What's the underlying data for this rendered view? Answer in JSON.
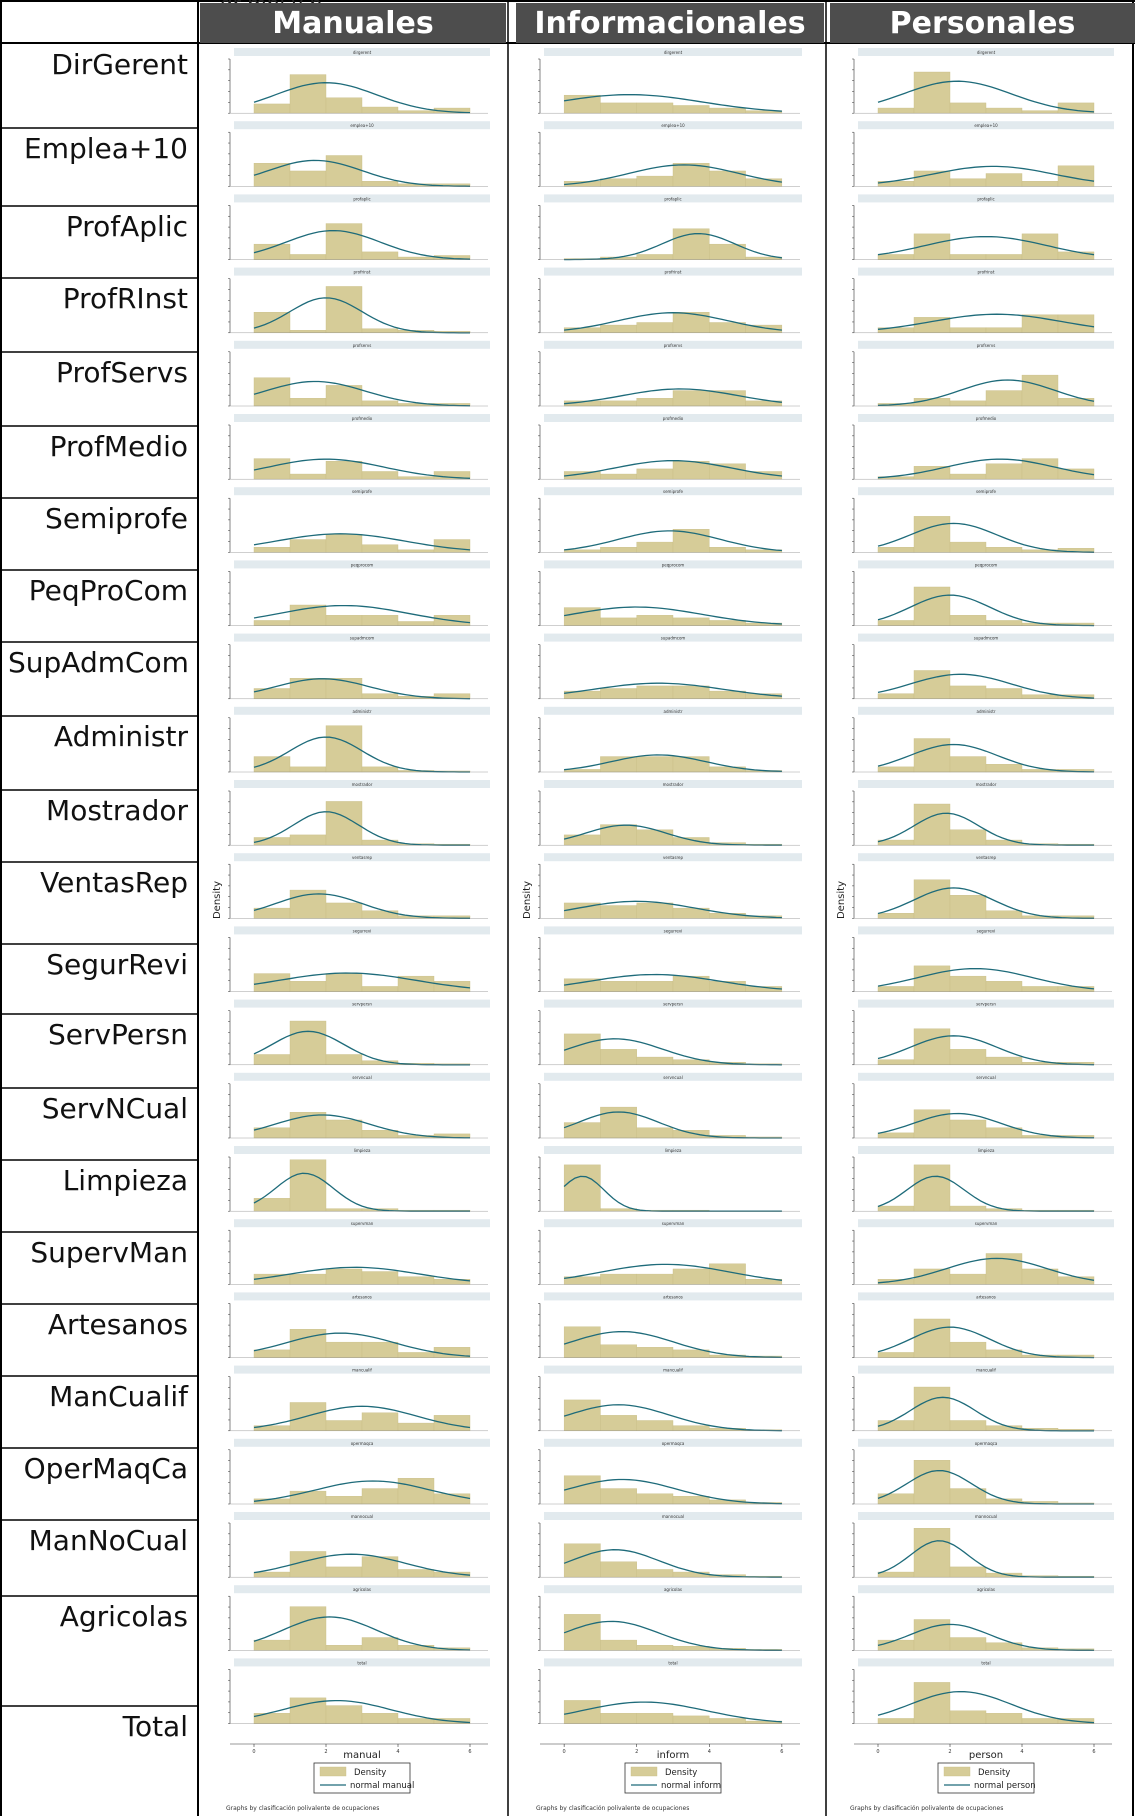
{
  "header_cut_text": "gr     mpl y     p",
  "columns": [
    {
      "title": "Manuales",
      "xlabel": "manual",
      "legend": [
        "Density",
        "normal manual"
      ],
      "note": "Graphs by clasificación polivalente de ocupaciones",
      "ylabel": "Density"
    },
    {
      "title": "Informacionales",
      "xlabel": "inform",
      "legend": [
        "Density",
        "normal inform"
      ],
      "note": "Graphs by clasificación polivalente de ocupaciones",
      "ylabel": "Density"
    },
    {
      "title": "Personales",
      "xlabel": "person",
      "legend": [
        "Density",
        "normal person"
      ],
      "note": "Graphs by clasificación polivalente de ocupaciones",
      "ylabel": "Density"
    }
  ],
  "rows": [
    "DirGerent",
    "Emplea+10",
    "ProfAplic",
    "ProfRInst",
    "ProfServs",
    "ProfMedio",
    "Semiprofe",
    "PeqProCom",
    "SupAdmCom",
    "Administr",
    "Mostrador",
    "VentasRep",
    "SegurRevi",
    "ServPersn",
    "ServNCual",
    "Limpieza",
    "SupervMan",
    "Artesanos",
    "ManCualif",
    "OperMaqCa",
    "ManNoCual",
    "Agricolas",
    "Total"
  ],
  "colors": {
    "bar": "#d6cc98",
    "bar_edge": "#c8bd86",
    "curve": "#1e6b7a",
    "panel_header": "#e2eaee",
    "title_bg": "#4d4d4d",
    "border": "#000000"
  },
  "chart_data": {
    "type": "bar",
    "note": "Histograms (Density) with normal density overlays, one panel per occupation group for each of three skill dimensions.",
    "x_ticks": [
      "0",
      "2",
      "4",
      "6"
    ],
    "bins": [
      "0-1",
      "1-2",
      "2-3",
      "3-4",
      "4-5",
      "5-6"
    ],
    "series_order": [
      "manual",
      "inform",
      "person"
    ],
    "panels": {
      "dirgerent": {
        "manual": {
          "values": [
            0.18,
            0.75,
            0.3,
            0.12,
            0.05,
            0.1
          ],
          "mean": 2.0,
          "sd": 1.4
        },
        "inform": {
          "values": [
            0.35,
            0.2,
            0.2,
            0.15,
            0.1,
            0.05
          ],
          "mean": 1.8,
          "sd": 2.0
        },
        "person": {
          "values": [
            0.1,
            0.8,
            0.2,
            0.1,
            0.05,
            0.2
          ],
          "mean": 2.2,
          "sd": 1.5
        }
      },
      "emplea+10": {
        "manual": {
          "values": [
            0.45,
            0.3,
            0.6,
            0.1,
            0.05,
            0.05
          ],
          "mean": 1.7,
          "sd": 1.3
        },
        "inform": {
          "values": [
            0.1,
            0.15,
            0.2,
            0.45,
            0.3,
            0.15
          ],
          "mean": 3.3,
          "sd": 1.5
        },
        "person": {
          "values": [
            0.1,
            0.3,
            0.15,
            0.25,
            0.1,
            0.4
          ],
          "mean": 3.2,
          "sd": 1.7
        }
      },
      "profaplic": {
        "manual": {
          "values": [
            0.3,
            0.1,
            0.7,
            0.15,
            0.05,
            0.08
          ],
          "mean": 2.2,
          "sd": 1.3
        },
        "inform": {
          "values": [
            0.02,
            0.05,
            0.1,
            0.6,
            0.3,
            0.05
          ],
          "mean": 3.7,
          "sd": 1.0
        },
        "person": {
          "values": [
            0.1,
            0.5,
            0.1,
            0.1,
            0.5,
            0.15
          ],
          "mean": 3.0,
          "sd": 1.7
        }
      },
      "profrinst": {
        "manual": {
          "values": [
            0.4,
            0.05,
            0.9,
            0.08,
            0.05,
            0.03
          ],
          "mean": 2.0,
          "sd": 1.0
        },
        "inform": {
          "values": [
            0.1,
            0.15,
            0.2,
            0.4,
            0.2,
            0.15
          ],
          "mean": 3.0,
          "sd": 1.5
        },
        "person": {
          "values": [
            0.1,
            0.3,
            0.1,
            0.1,
            0.35,
            0.35
          ],
          "mean": 3.3,
          "sd": 1.8
        }
      },
      "profservs": {
        "manual": {
          "values": [
            0.55,
            0.15,
            0.4,
            0.1,
            0.05,
            0.05
          ],
          "mean": 1.7,
          "sd": 1.4
        },
        "inform": {
          "values": [
            0.1,
            0.1,
            0.15,
            0.3,
            0.3,
            0.1
          ],
          "mean": 3.2,
          "sd": 1.6
        },
        "person": {
          "values": [
            0.05,
            0.15,
            0.1,
            0.3,
            0.6,
            0.15
          ],
          "mean": 3.6,
          "sd": 1.3
        }
      },
      "profmedio": {
        "manual": {
          "values": [
            0.4,
            0.1,
            0.35,
            0.15,
            0.05,
            0.15
          ],
          "mean": 2.0,
          "sd": 1.6
        },
        "inform": {
          "values": [
            0.15,
            0.1,
            0.2,
            0.35,
            0.3,
            0.15
          ],
          "mean": 3.0,
          "sd": 1.6
        },
        "person": {
          "values": [
            0.05,
            0.25,
            0.1,
            0.3,
            0.4,
            0.2
          ],
          "mean": 3.4,
          "sd": 1.5
        }
      },
      "semiprofe": {
        "manual": {
          "values": [
            0.1,
            0.25,
            0.35,
            0.15,
            0.05,
            0.25
          ],
          "mean": 2.4,
          "sd": 1.8
        },
        "inform": {
          "values": [
            0.05,
            0.1,
            0.2,
            0.45,
            0.1,
            0.05
          ],
          "mean": 2.9,
          "sd": 1.4
        },
        "person": {
          "values": [
            0.1,
            0.7,
            0.2,
            0.1,
            0.05,
            0.08
          ],
          "mean": 2.1,
          "sd": 1.2
        }
      },
      "peqprocom": {
        "manual": {
          "values": [
            0.1,
            0.4,
            0.2,
            0.2,
            0.08,
            0.2
          ],
          "mean": 2.5,
          "sd": 1.8
        },
        "inform": {
          "values": [
            0.35,
            0.15,
            0.2,
            0.15,
            0.1,
            0.05
          ],
          "mean": 2.0,
          "sd": 1.8
        },
        "person": {
          "values": [
            0.1,
            0.75,
            0.2,
            0.1,
            0.05,
            0.05
          ],
          "mean": 2.0,
          "sd": 1.1
        }
      },
      "supadmcom": {
        "manual": {
          "values": [
            0.2,
            0.4,
            0.4,
            0.1,
            0.05,
            0.1
          ],
          "mean": 1.9,
          "sd": 1.3
        },
        "inform": {
          "values": [
            0.15,
            0.2,
            0.25,
            0.25,
            0.15,
            0.1
          ],
          "mean": 2.6,
          "sd": 1.8
        },
        "person": {
          "values": [
            0.1,
            0.55,
            0.25,
            0.2,
            0.08,
            0.08
          ],
          "mean": 2.3,
          "sd": 1.4
        }
      },
      "administr": {
        "manual": {
          "values": [
            0.3,
            0.1,
            0.9,
            0.1,
            0.03,
            0.02
          ],
          "mean": 2.0,
          "sd": 1.0
        },
        "inform": {
          "values": [
            0.05,
            0.3,
            0.3,
            0.3,
            0.1,
            0.03
          ],
          "mean": 2.6,
          "sd": 1.3
        },
        "person": {
          "values": [
            0.1,
            0.65,
            0.3,
            0.15,
            0.05,
            0.05
          ],
          "mean": 2.1,
          "sd": 1.2
        }
      },
      "mostrador": {
        "manual": {
          "values": [
            0.15,
            0.2,
            0.85,
            0.1,
            0.03,
            0.02
          ],
          "mean": 2.0,
          "sd": 0.9
        },
        "inform": {
          "values": [
            0.2,
            0.4,
            0.3,
            0.15,
            0.05,
            0.02
          ],
          "mean": 1.7,
          "sd": 1.1
        },
        "person": {
          "values": [
            0.1,
            0.8,
            0.3,
            0.1,
            0.03,
            0.02
          ],
          "mean": 1.9,
          "sd": 0.9
        }
      },
      "ventasrep": {
        "manual": {
          "values": [
            0.2,
            0.55,
            0.3,
            0.15,
            0.05,
            0.05
          ],
          "mean": 1.8,
          "sd": 1.2
        },
        "inform": {
          "values": [
            0.3,
            0.25,
            0.3,
            0.2,
            0.1,
            0.05
          ],
          "mean": 2.0,
          "sd": 1.6
        },
        "person": {
          "values": [
            0.1,
            0.75,
            0.45,
            0.15,
            0.05,
            0.05
          ],
          "mean": 2.1,
          "sd": 1.1
        }
      },
      "segurrevi": {
        "manual": {
          "values": [
            0.35,
            0.2,
            0.35,
            0.1,
            0.3,
            0.2
          ],
          "mean": 2.6,
          "sd": 1.9
        },
        "inform": {
          "values": [
            0.25,
            0.2,
            0.2,
            0.3,
            0.2,
            0.1
          ],
          "mean": 2.5,
          "sd": 1.8
        },
        "person": {
          "values": [
            0.1,
            0.5,
            0.3,
            0.2,
            0.1,
            0.1
          ],
          "mean": 2.7,
          "sd": 1.6
        }
      },
      "servpersn": {
        "manual": {
          "values": [
            0.2,
            0.85,
            0.2,
            0.08,
            0.03,
            0.02
          ],
          "mean": 1.5,
          "sd": 1.0
        },
        "inform": {
          "values": [
            0.6,
            0.3,
            0.15,
            0.1,
            0.05,
            0.02
          ],
          "mean": 1.4,
          "sd": 1.3
        },
        "person": {
          "values": [
            0.1,
            0.7,
            0.3,
            0.15,
            0.05,
            0.05
          ],
          "mean": 2.1,
          "sd": 1.2
        }
      },
      "servncual": {
        "manual": {
          "values": [
            0.2,
            0.5,
            0.35,
            0.15,
            0.05,
            0.08
          ],
          "mean": 1.9,
          "sd": 1.3
        },
        "inform": {
          "values": [
            0.3,
            0.6,
            0.2,
            0.15,
            0.05,
            0.02
          ],
          "mean": 1.5,
          "sd": 1.1
        },
        "person": {
          "values": [
            0.1,
            0.55,
            0.35,
            0.2,
            0.05,
            0.05
          ],
          "mean": 2.2,
          "sd": 1.2
        }
      },
      "limpieza": {
        "manual": {
          "values": [
            0.25,
            1.0,
            0.05,
            0.05,
            0.02,
            0.02
          ],
          "mean": 1.4,
          "sd": 0.8
        },
        "inform": {
          "values": [
            0.9,
            0.05,
            0.02,
            0.02,
            0.01,
            0.01
          ],
          "mean": 0.5,
          "sd": 0.6
        },
        "person": {
          "values": [
            0.1,
            0.9,
            0.1,
            0.05,
            0.02,
            0.02
          ],
          "mean": 1.6,
          "sd": 0.8
        }
      },
      "supervman": {
        "manual": {
          "values": [
            0.2,
            0.2,
            0.3,
            0.25,
            0.15,
            0.1
          ],
          "mean": 2.8,
          "sd": 1.8
        },
        "inform": {
          "values": [
            0.15,
            0.2,
            0.2,
            0.3,
            0.4,
            0.1
          ],
          "mean": 2.8,
          "sd": 1.8
        },
        "person": {
          "values": [
            0.1,
            0.3,
            0.2,
            0.6,
            0.3,
            0.15
          ],
          "mean": 3.3,
          "sd": 1.4
        }
      },
      "artesanos": {
        "manual": {
          "values": [
            0.15,
            0.55,
            0.3,
            0.3,
            0.1,
            0.2
          ],
          "mean": 2.4,
          "sd": 1.5
        },
        "inform": {
          "values": [
            0.6,
            0.25,
            0.2,
            0.15,
            0.05,
            0.03
          ],
          "mean": 1.6,
          "sd": 1.4
        },
        "person": {
          "values": [
            0.1,
            0.75,
            0.3,
            0.15,
            0.05,
            0.05
          ],
          "mean": 2.0,
          "sd": 1.1
        }
      },
      "mancualif": {
        "manual": {
          "values": [
            0.1,
            0.55,
            0.2,
            0.35,
            0.15,
            0.3
          ],
          "mean": 3.0,
          "sd": 1.5
        },
        "inform": {
          "values": [
            0.6,
            0.3,
            0.2,
            0.1,
            0.05,
            0.02
          ],
          "mean": 1.5,
          "sd": 1.4
        },
        "person": {
          "values": [
            0.2,
            0.85,
            0.2,
            0.1,
            0.05,
            0.03
          ],
          "mean": 1.8,
          "sd": 0.9
        }
      },
      "opermaqca": {
        "manual": {
          "values": [
            0.1,
            0.25,
            0.15,
            0.3,
            0.5,
            0.2
          ],
          "mean": 3.3,
          "sd": 1.6
        },
        "inform": {
          "values": [
            0.55,
            0.3,
            0.2,
            0.15,
            0.08,
            0.03
          ],
          "mean": 1.6,
          "sd": 1.5
        },
        "person": {
          "values": [
            0.2,
            0.85,
            0.3,
            0.1,
            0.05,
            0.02
          ],
          "mean": 1.7,
          "sd": 0.9
        }
      },
      "mannocual": {
        "manual": {
          "values": [
            0.1,
            0.5,
            0.2,
            0.4,
            0.15,
            0.1
          ],
          "mean": 2.7,
          "sd": 1.5
        },
        "inform": {
          "values": [
            0.65,
            0.3,
            0.15,
            0.1,
            0.05,
            0.02
          ],
          "mean": 1.4,
          "sd": 1.2
        },
        "person": {
          "values": [
            0.1,
            0.95,
            0.2,
            0.08,
            0.03,
            0.02
          ],
          "mean": 1.7,
          "sd": 0.8
        }
      },
      "agricolas": {
        "manual": {
          "values": [
            0.2,
            0.85,
            0.1,
            0.25,
            0.1,
            0.05
          ],
          "mean": 2.1,
          "sd": 1.3
        },
        "inform": {
          "values": [
            0.7,
            0.2,
            0.1,
            0.08,
            0.04,
            0.02
          ],
          "mean": 1.3,
          "sd": 1.3
        },
        "person": {
          "values": [
            0.2,
            0.6,
            0.25,
            0.15,
            0.05,
            0.03
          ],
          "mean": 2.0,
          "sd": 1.1
        }
      },
      "total": {
        "manual": {
          "values": [
            0.2,
            0.5,
            0.35,
            0.2,
            0.1,
            0.1
          ],
          "mean": 2.3,
          "sd": 1.5
        },
        "inform": {
          "values": [
            0.45,
            0.2,
            0.2,
            0.15,
            0.1,
            0.05
          ],
          "mean": 2.2,
          "sd": 1.7
        },
        "person": {
          "values": [
            0.1,
            0.8,
            0.25,
            0.2,
            0.1,
            0.1
          ],
          "mean": 2.3,
          "sd": 1.4
        }
      }
    }
  }
}
